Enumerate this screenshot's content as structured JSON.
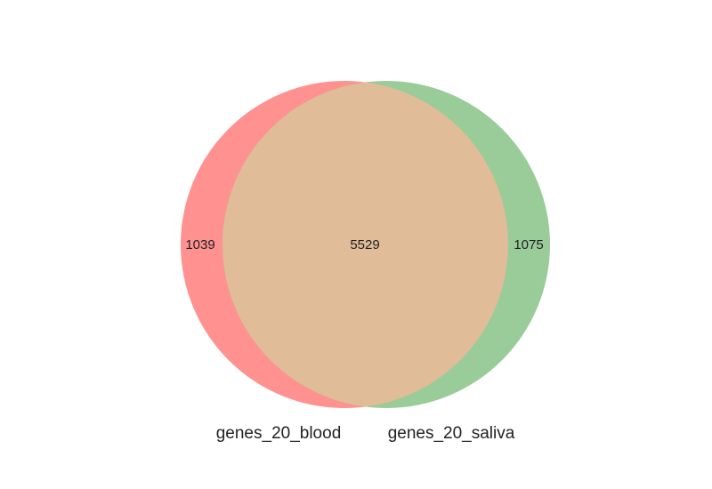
{
  "diagram": {
    "type": "venn2",
    "sets": [
      {
        "key": "left",
        "label": "genes_20_blood",
        "only_count": "1039",
        "color": "#ff9191"
      },
      {
        "key": "right",
        "label": "genes_20_saliva",
        "only_count": "1075",
        "color": "#99cc99"
      }
    ],
    "intersection": {
      "count": "5529",
      "color": "#e0bc98"
    }
  }
}
